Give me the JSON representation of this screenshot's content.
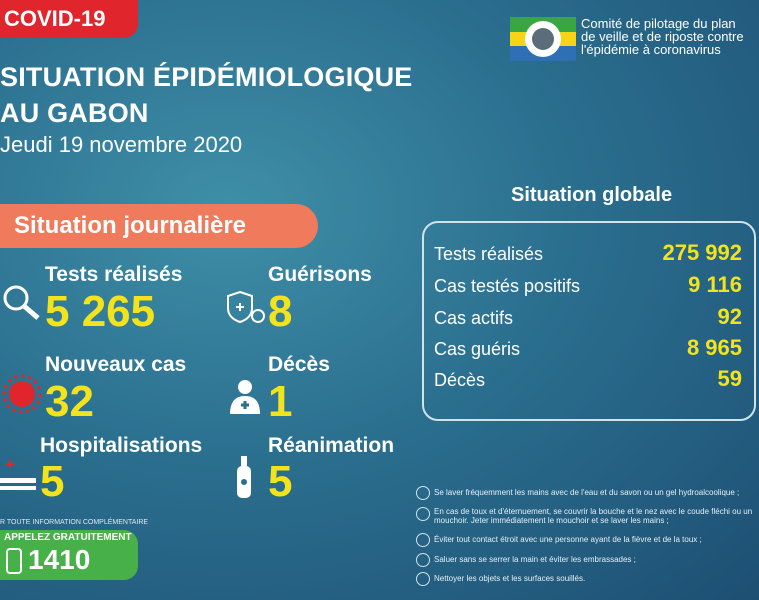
{
  "header": {
    "badge": "COVID-19",
    "title_lines": [
      "SITUATION ÉPIDÉMIOLOGIQUE",
      "AU GABON"
    ],
    "date": "Jeudi 19 novembre 2020",
    "organization_lines": [
      "Comité de pilotage du plan",
      "de veille et de riposte contre",
      "l'épidémie à coronavirus"
    ]
  },
  "daily": {
    "title": "Situation journalière",
    "items": [
      {
        "label": "Tests réalisés",
        "value": "5 265"
      },
      {
        "label": "Guérisons",
        "value": "8"
      },
      {
        "label": "Nouveaux cas",
        "value": "32"
      },
      {
        "label": "Décès",
        "value": "1"
      },
      {
        "label": "Hospitalisations",
        "value": "5"
      },
      {
        "label": "Réanimation",
        "value": "5"
      }
    ]
  },
  "global": {
    "title": "Situation globale",
    "rows": [
      [
        "Tests réalisés",
        "275 992"
      ],
      [
        "Cas testés positifs",
        "9 116"
      ],
      [
        "Cas actifs",
        "92"
      ],
      [
        "Cas guéris",
        "8 965"
      ],
      [
        "Décès",
        "59"
      ]
    ]
  },
  "advice": [
    "Se laver fréquemment les mains avec de l'eau et du savon ou un gel hydroalcoolique ;",
    "En cas de toux et d'éternuement, se couvrir la bouche et le nez avec le coude fléchi ou un mouchoir. Jeter immédiatement le mouchoir et se laver les mains ;",
    "Éviter tout contact étroit avec une personne ayant de la fièvre et de la toux ;",
    "Saluer sans se serrer la main et éviter les embrassades ;",
    "Nettoyer les objets et les surfaces souillés."
  ],
  "footer": {
    "info": "R TOUTE INFORMATION COMPLÉMENTAIRE",
    "call": "APPELEZ GRATUITEMENT",
    "number": "1410"
  }
}
